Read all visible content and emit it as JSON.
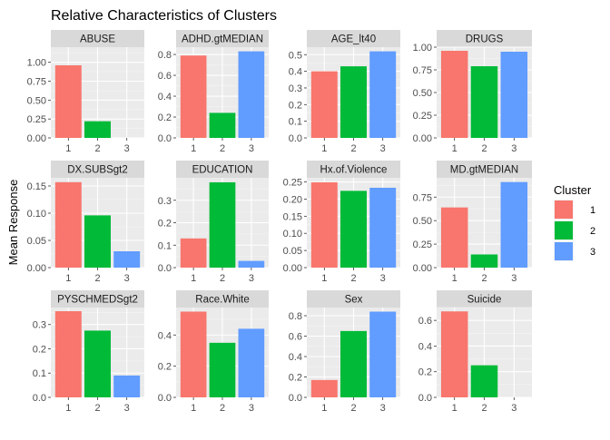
{
  "chart_data": {
    "type": "bar",
    "title": "Relative Characteristics of Clusters",
    "xlabel": "",
    "ylabel": "Mean Response",
    "categories": [
      "1",
      "2",
      "3"
    ],
    "legend": {
      "title": "Cluster",
      "position": "right",
      "entries": [
        {
          "label": "1",
          "color": "#F8766D"
        },
        {
          "label": "2",
          "color": "#00BA38"
        },
        {
          "label": "3",
          "color": "#619CFF"
        }
      ]
    },
    "grid": true,
    "facets": [
      {
        "name": "ABUSE",
        "values": [
          0.96,
          0.22,
          0.0
        ],
        "ylim": [
          0,
          1.2
        ],
        "yticks": [
          0,
          0.25,
          0.5,
          0.75,
          1.0
        ],
        "ytick_labels": [
          "0.00",
          "0.25",
          "0.50",
          "0.75",
          "1.00"
        ]
      },
      {
        "name": "ADHD.gtMEDIAN",
        "values": [
          0.79,
          0.24,
          0.83
        ],
        "ylim": [
          0,
          0.87
        ],
        "yticks": [
          0,
          0.2,
          0.4,
          0.6,
          0.8
        ],
        "ytick_labels": [
          "0.0",
          "0.2",
          "0.4",
          "0.6",
          "0.8"
        ]
      },
      {
        "name": "AGE_lt40",
        "values": [
          0.4,
          0.43,
          0.52
        ],
        "ylim": [
          0,
          0.545
        ],
        "yticks": [
          0,
          0.1,
          0.2,
          0.3,
          0.4,
          0.5
        ],
        "ytick_labels": [
          "0.0",
          "0.1",
          "0.2",
          "0.3",
          "0.4",
          "0.5"
        ]
      },
      {
        "name": "DRUGS",
        "values": [
          0.96,
          0.79,
          0.95
        ],
        "ylim": [
          0,
          1.0
        ],
        "yticks": [
          0,
          0.25,
          0.5,
          0.75,
          1.0
        ],
        "ytick_labels": [
          "0.00",
          "0.25",
          "0.50",
          "0.75",
          "1.00"
        ]
      },
      {
        "name": "DX.SUBSgt2",
        "values": [
          0.157,
          0.096,
          0.03
        ],
        "ylim": [
          0,
          0.165
        ],
        "yticks": [
          0,
          0.05,
          0.1,
          0.15
        ],
        "ytick_labels": [
          "0.00",
          "0.05",
          "0.10",
          "0.15"
        ]
      },
      {
        "name": "EDUCATION",
        "values": [
          0.13,
          0.38,
          0.03
        ],
        "ylim": [
          0,
          0.4
        ],
        "yticks": [
          0,
          0.1,
          0.2,
          0.3
        ],
        "ytick_labels": [
          "0.0",
          "0.1",
          "0.2",
          "0.3"
        ]
      },
      {
        "name": "Hx.of.Violence",
        "values": [
          0.249,
          0.224,
          0.233
        ],
        "ylim": [
          0,
          0.262
        ],
        "yticks": [
          0,
          0.05,
          0.1,
          0.15,
          0.2,
          0.25
        ],
        "ytick_labels": [
          "0.00",
          "0.05",
          "0.10",
          "0.15",
          "0.20",
          "0.25"
        ]
      },
      {
        "name": "MD.gtMEDIAN",
        "values": [
          0.64,
          0.14,
          0.91
        ],
        "ylim": [
          0,
          0.955
        ],
        "yticks": [
          0,
          0.25,
          0.5,
          0.75
        ],
        "ytick_labels": [
          "0.00",
          "0.25",
          "0.50",
          "0.75"
        ]
      },
      {
        "name": "PYSCHMEDSgt2",
        "values": [
          0.355,
          0.275,
          0.09
        ],
        "ylim": [
          0,
          0.37
        ],
        "yticks": [
          0,
          0.1,
          0.2,
          0.3
        ],
        "ytick_labels": [
          "0.0",
          "0.1",
          "0.2",
          "0.3"
        ]
      },
      {
        "name": "Race.White",
        "values": [
          0.55,
          0.35,
          0.44
        ],
        "ylim": [
          0,
          0.576
        ],
        "yticks": [
          0,
          0.2,
          0.4
        ],
        "ytick_labels": [
          "0.0",
          "0.2",
          "0.4"
        ]
      },
      {
        "name": "Sex",
        "values": [
          0.17,
          0.65,
          0.84
        ],
        "ylim": [
          0,
          0.88
        ],
        "yticks": [
          0,
          0.2,
          0.4,
          0.6,
          0.8
        ],
        "ytick_labels": [
          "0.0",
          "0.2",
          "0.4",
          "0.6",
          "0.8"
        ]
      },
      {
        "name": "Suicide",
        "values": [
          0.67,
          0.25,
          0.0
        ],
        "ylim": [
          0,
          0.7
        ],
        "yticks": [
          0,
          0.2,
          0.4,
          0.6
        ],
        "ytick_labels": [
          "0.0",
          "0.2",
          "0.4",
          "0.6"
        ]
      }
    ]
  }
}
